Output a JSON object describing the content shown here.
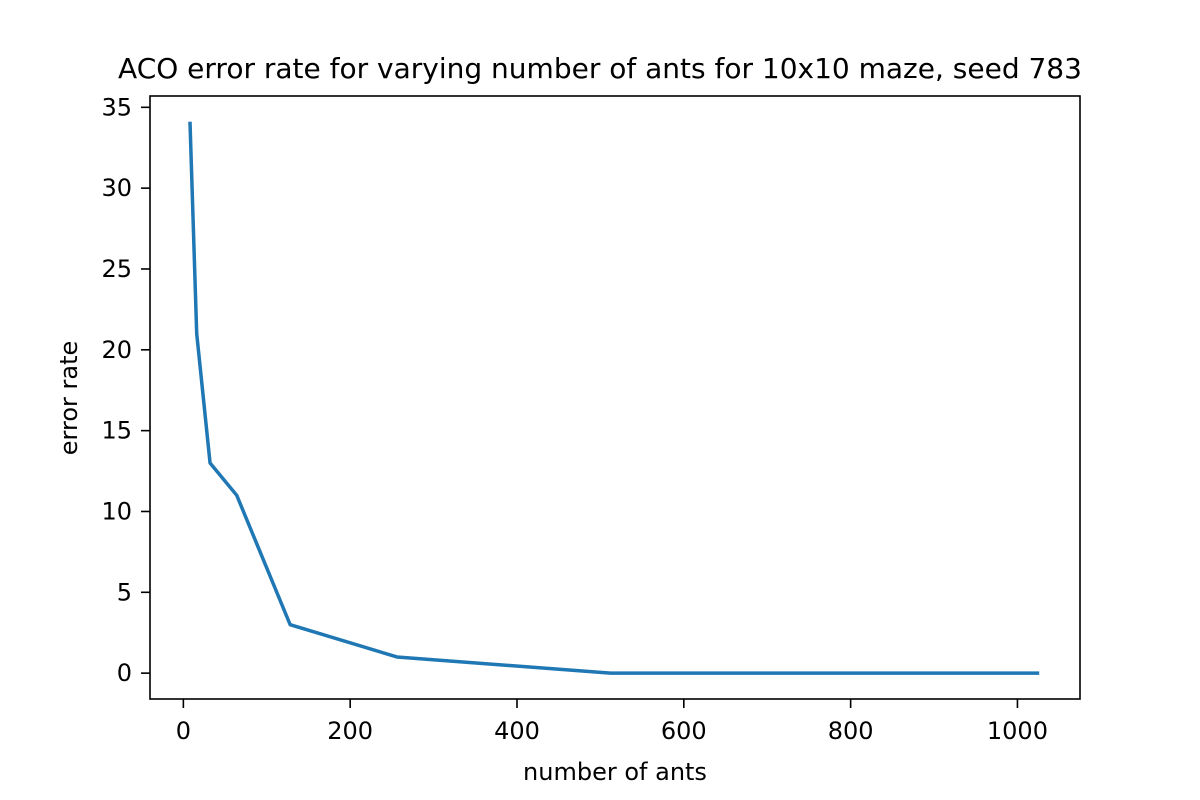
{
  "chart_data": {
    "type": "line",
    "title": "ACO error rate for varying number of ants for 10x10 maze, seed 783",
    "xlabel": "number of ants",
    "ylabel": "error rate",
    "xlim": [
      -40,
      1075
    ],
    "ylim": [
      -1.6,
      35.7
    ],
    "xticks": [
      0,
      200,
      400,
      600,
      800,
      1000
    ],
    "yticks": [
      0,
      5,
      10,
      15,
      20,
      25,
      30,
      35
    ],
    "grid": false,
    "series": [
      {
        "name": "error rate",
        "color": "#1f77b4",
        "x": [
          8,
          16,
          32,
          64,
          128,
          256,
          512,
          1024
        ],
        "y": [
          34,
          21,
          13,
          11,
          3,
          1,
          0,
          0
        ]
      }
    ]
  }
}
